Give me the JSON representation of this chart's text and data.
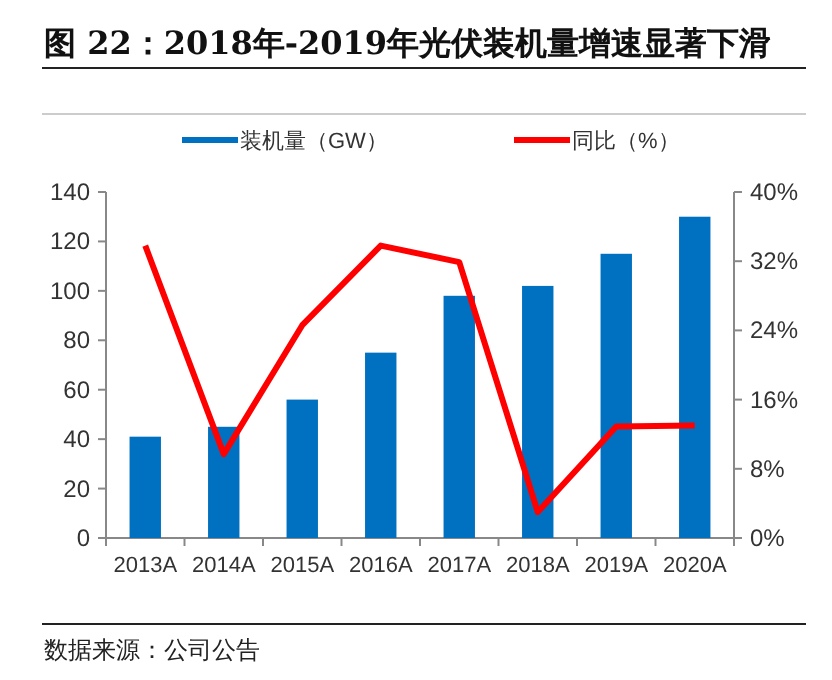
{
  "chart_data": {
    "type": "bar",
    "title": "图 22：2018年-2019年光伏装机量增速显著下滑",
    "categories": [
      "2013A",
      "2014A",
      "2015A",
      "2016A",
      "2017A",
      "2018A",
      "2019A",
      "2020A"
    ],
    "series": [
      {
        "name": "装机量（GW）",
        "color": "#0070c0",
        "values": [
          41,
          45,
          56,
          75,
          98,
          102,
          115,
          130
        ]
      },
      {
        "name": "同比（%）",
        "type": "line",
        "axis": "y2",
        "color": "#ff0000",
        "marker": "none",
        "values": [
          33.8,
          9.7,
          24.6,
          33.8,
          31.9,
          3.0,
          12.9,
          13.0
        ]
      }
    ],
    "ylim": [
      0,
      140
    ],
    "yticks": [
      0,
      20,
      40,
      60,
      80,
      100,
      120,
      140
    ],
    "y2lim": [
      0,
      40
    ],
    "y2ticks": [
      {
        "value": 0,
        "label": "0%"
      },
      {
        "value": 8,
        "label": "8%"
      },
      {
        "value": 16,
        "label": "16%"
      },
      {
        "value": 24,
        "label": "24%"
      },
      {
        "value": 32,
        "label": "32%"
      },
      {
        "value": 40,
        "label": "40%"
      }
    ],
    "grid": false,
    "legend": "top",
    "annotations": [
      "数据来源：公司公告"
    ]
  }
}
